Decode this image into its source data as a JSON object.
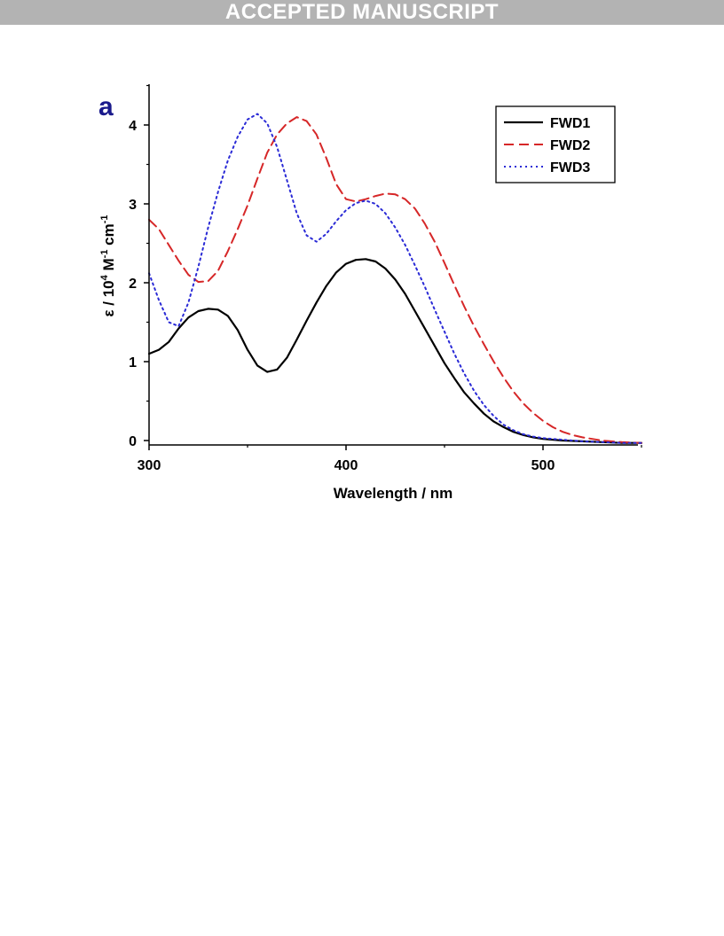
{
  "banner": {
    "text": "ACCEPTED MANUSCRIPT"
  },
  "colors": {
    "banner": "#b3b3b3",
    "panel_letter": "#1a1a8c"
  },
  "chart_data": {
    "type": "line",
    "panel_label": "a",
    "title": "",
    "xlabel": "Wavelength / nm",
    "ylabel": {
      "base": "ε / 10",
      "exp1": "4",
      "mid": " M",
      "exp2": "-1",
      "end": " cm",
      "exp3": "-1"
    },
    "xlim": [
      300,
      550
    ],
    "ylim": [
      -0.05,
      4.5
    ],
    "xticks": [
      300,
      400,
      500
    ],
    "yticks": [
      0,
      1,
      2,
      3,
      4
    ],
    "legend_position": "top-right",
    "grid": false,
    "series": [
      {
        "name": "FWD1",
        "color": "#000000",
        "dash": "solid",
        "points": [
          [
            300,
            1.1
          ],
          [
            305,
            1.15
          ],
          [
            310,
            1.25
          ],
          [
            315,
            1.42
          ],
          [
            320,
            1.56
          ],
          [
            325,
            1.64
          ],
          [
            330,
            1.67
          ],
          [
            335,
            1.66
          ],
          [
            340,
            1.58
          ],
          [
            345,
            1.4
          ],
          [
            350,
            1.15
          ],
          [
            355,
            0.95
          ],
          [
            360,
            0.87
          ],
          [
            365,
            0.9
          ],
          [
            370,
            1.05
          ],
          [
            375,
            1.28
          ],
          [
            380,
            1.52
          ],
          [
            385,
            1.75
          ],
          [
            390,
            1.96
          ],
          [
            395,
            2.13
          ],
          [
            400,
            2.24
          ],
          [
            405,
            2.29
          ],
          [
            410,
            2.3
          ],
          [
            415,
            2.27
          ],
          [
            420,
            2.18
          ],
          [
            425,
            2.04
          ],
          [
            430,
            1.86
          ],
          [
            435,
            1.64
          ],
          [
            440,
            1.42
          ],
          [
            445,
            1.2
          ],
          [
            450,
            0.98
          ],
          [
            455,
            0.79
          ],
          [
            460,
            0.61
          ],
          [
            465,
            0.47
          ],
          [
            470,
            0.34
          ],
          [
            475,
            0.24
          ],
          [
            480,
            0.17
          ],
          [
            485,
            0.11
          ],
          [
            490,
            0.07
          ],
          [
            495,
            0.04
          ],
          [
            500,
            0.02
          ],
          [
            510,
            0.0
          ],
          [
            520,
            -0.01
          ],
          [
            530,
            -0.02
          ],
          [
            540,
            -0.03
          ],
          [
            550,
            -0.03
          ]
        ]
      },
      {
        "name": "FWD2",
        "color": "#d62728",
        "dash": "dashed",
        "points": [
          [
            300,
            2.8
          ],
          [
            305,
            2.68
          ],
          [
            310,
            2.48
          ],
          [
            315,
            2.28
          ],
          [
            320,
            2.1
          ],
          [
            325,
            2.01
          ],
          [
            330,
            2.02
          ],
          [
            335,
            2.15
          ],
          [
            340,
            2.4
          ],
          [
            345,
            2.68
          ],
          [
            350,
            2.98
          ],
          [
            355,
            3.32
          ],
          [
            360,
            3.65
          ],
          [
            365,
            3.88
          ],
          [
            370,
            4.02
          ],
          [
            375,
            4.1
          ],
          [
            380,
            4.05
          ],
          [
            385,
            3.88
          ],
          [
            390,
            3.58
          ],
          [
            395,
            3.25
          ],
          [
            400,
            3.06
          ],
          [
            405,
            3.03
          ],
          [
            410,
            3.06
          ],
          [
            415,
            3.1
          ],
          [
            420,
            3.13
          ],
          [
            425,
            3.12
          ],
          [
            430,
            3.06
          ],
          [
            435,
            2.94
          ],
          [
            440,
            2.75
          ],
          [
            445,
            2.52
          ],
          [
            450,
            2.25
          ],
          [
            455,
            1.97
          ],
          [
            460,
            1.7
          ],
          [
            465,
            1.45
          ],
          [
            470,
            1.22
          ],
          [
            475,
            1.0
          ],
          [
            480,
            0.8
          ],
          [
            485,
            0.62
          ],
          [
            490,
            0.47
          ],
          [
            495,
            0.35
          ],
          [
            500,
            0.25
          ],
          [
            505,
            0.17
          ],
          [
            510,
            0.11
          ],
          [
            515,
            0.07
          ],
          [
            520,
            0.04
          ],
          [
            525,
            0.02
          ],
          [
            530,
            0.0
          ],
          [
            540,
            -0.02
          ],
          [
            550,
            -0.03
          ]
        ]
      },
      {
        "name": "FWD3",
        "color": "#2b2bd6",
        "dash": "dotted",
        "points": [
          [
            300,
            2.12
          ],
          [
            305,
            1.78
          ],
          [
            310,
            1.5
          ],
          [
            315,
            1.45
          ],
          [
            320,
            1.75
          ],
          [
            325,
            2.2
          ],
          [
            330,
            2.7
          ],
          [
            335,
            3.15
          ],
          [
            340,
            3.55
          ],
          [
            345,
            3.85
          ],
          [
            350,
            4.07
          ],
          [
            355,
            4.14
          ],
          [
            360,
            4.02
          ],
          [
            365,
            3.72
          ],
          [
            370,
            3.3
          ],
          [
            375,
            2.88
          ],
          [
            380,
            2.6
          ],
          [
            385,
            2.52
          ],
          [
            390,
            2.62
          ],
          [
            395,
            2.78
          ],
          [
            400,
            2.92
          ],
          [
            405,
            3.01
          ],
          [
            410,
            3.04
          ],
          [
            415,
            3.0
          ],
          [
            420,
            2.88
          ],
          [
            425,
            2.7
          ],
          [
            430,
            2.48
          ],
          [
            435,
            2.22
          ],
          [
            440,
            1.95
          ],
          [
            445,
            1.66
          ],
          [
            450,
            1.38
          ],
          [
            455,
            1.1
          ],
          [
            460,
            0.85
          ],
          [
            465,
            0.63
          ],
          [
            470,
            0.45
          ],
          [
            475,
            0.31
          ],
          [
            480,
            0.2
          ],
          [
            485,
            0.13
          ],
          [
            490,
            0.08
          ],
          [
            495,
            0.05
          ],
          [
            500,
            0.03
          ],
          [
            510,
            0.01
          ],
          [
            520,
            -0.01
          ],
          [
            530,
            -0.02
          ],
          [
            540,
            -0.03
          ],
          [
            550,
            -0.03
          ]
        ]
      }
    ]
  }
}
